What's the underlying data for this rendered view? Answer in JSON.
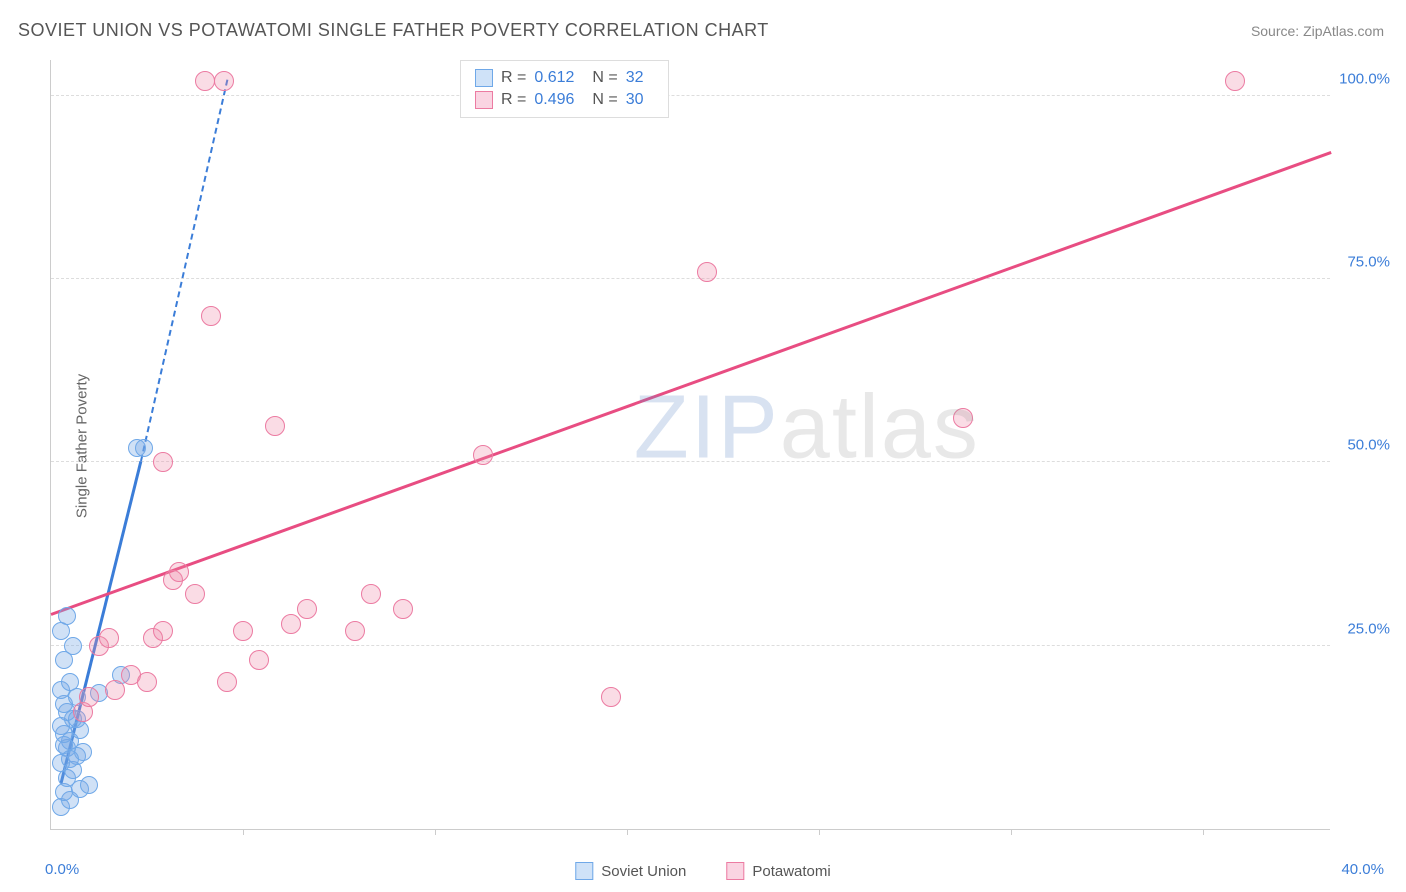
{
  "title": "SOVIET UNION VS POTAWATOMI SINGLE FATHER POVERTY CORRELATION CHART",
  "source": "Source: ZipAtlas.com",
  "ylabel": "Single Father Poverty",
  "watermark_z": "ZIP",
  "watermark_rest": "atlas",
  "chart": {
    "type": "scatter",
    "xlim": [
      0,
      40
    ],
    "ylim": [
      0,
      105
    ],
    "x_tick_positions_pct": [
      15,
      30,
      45,
      60,
      75,
      90
    ],
    "x_axis_labels": {
      "left": "0.0%",
      "right": "40.0%"
    },
    "y_gridlines": [
      {
        "value": 25,
        "label": "25.0%"
      },
      {
        "value": 50,
        "label": "50.0%"
      },
      {
        "value": 75,
        "label": "75.0%"
      },
      {
        "value": 100,
        "label": "100.0%"
      }
    ],
    "background_color": "#ffffff",
    "grid_color": "#dddddd",
    "axis_color": "#cccccc",
    "tick_label_color": "#3b7dd8",
    "series": [
      {
        "name": "Soviet Union",
        "color_fill": "rgba(120,170,230,0.35)",
        "color_stroke": "#6fa8e8",
        "swatch_fill": "#cfe2f8",
        "swatch_border": "#6fa8e8",
        "point_radius": 9,
        "stats": {
          "R": "0.612",
          "N": "32"
        },
        "trend": {
          "x1": 0.3,
          "y1": 6,
          "x2": 2.8,
          "y2": 50,
          "solid_color": "#3b7dd8",
          "dash_x2": 5.5,
          "dash_y2": 102
        },
        "points": [
          {
            "x": 0.3,
            "y": 3
          },
          {
            "x": 0.6,
            "y": 4
          },
          {
            "x": 0.4,
            "y": 5
          },
          {
            "x": 0.9,
            "y": 5.5
          },
          {
            "x": 1.2,
            "y": 6
          },
          {
            "x": 0.5,
            "y": 7
          },
          {
            "x": 0.7,
            "y": 8
          },
          {
            "x": 0.3,
            "y": 9
          },
          {
            "x": 0.8,
            "y": 10
          },
          {
            "x": 1.0,
            "y": 10.5
          },
          {
            "x": 0.5,
            "y": 11
          },
          {
            "x": 0.6,
            "y": 12
          },
          {
            "x": 0.4,
            "y": 13
          },
          {
            "x": 0.9,
            "y": 13.5
          },
          {
            "x": 0.3,
            "y": 14
          },
          {
            "x": 0.7,
            "y": 15
          },
          {
            "x": 0.5,
            "y": 16
          },
          {
            "x": 0.4,
            "y": 17
          },
          {
            "x": 0.8,
            "y": 18
          },
          {
            "x": 1.5,
            "y": 18.5
          },
          {
            "x": 0.3,
            "y": 19
          },
          {
            "x": 0.6,
            "y": 20
          },
          {
            "x": 2.2,
            "y": 21
          },
          {
            "x": 0.4,
            "y": 23
          },
          {
            "x": 0.7,
            "y": 25
          },
          {
            "x": 0.3,
            "y": 27
          },
          {
            "x": 0.5,
            "y": 29
          },
          {
            "x": 0.8,
            "y": 15
          },
          {
            "x": 0.4,
            "y": 11.5
          },
          {
            "x": 0.6,
            "y": 9.5
          },
          {
            "x": 2.7,
            "y": 52
          },
          {
            "x": 2.9,
            "y": 52
          }
        ]
      },
      {
        "name": "Potawatomi",
        "color_fill": "rgba(240,140,170,0.30)",
        "color_stroke": "#ec7ba2",
        "swatch_fill": "#fad4e2",
        "swatch_border": "#ec7ba2",
        "point_radius": 10,
        "stats": {
          "R": "0.496",
          "N": "30"
        },
        "trend": {
          "x1": 0,
          "y1": 29,
          "x2": 40,
          "y2": 92,
          "solid_color": "#e84d82"
        },
        "points": [
          {
            "x": 1.0,
            "y": 16
          },
          {
            "x": 1.2,
            "y": 18
          },
          {
            "x": 1.5,
            "y": 25
          },
          {
            "x": 1.8,
            "y": 26
          },
          {
            "x": 2.0,
            "y": 19
          },
          {
            "x": 2.5,
            "y": 21
          },
          {
            "x": 3.0,
            "y": 20
          },
          {
            "x": 3.2,
            "y": 26
          },
          {
            "x": 3.5,
            "y": 27
          },
          {
            "x": 3.8,
            "y": 34
          },
          {
            "x": 4.0,
            "y": 35
          },
          {
            "x": 3.5,
            "y": 50
          },
          {
            "x": 4.5,
            "y": 32
          },
          {
            "x": 5.0,
            "y": 70
          },
          {
            "x": 5.5,
            "y": 20
          },
          {
            "x": 6.0,
            "y": 27
          },
          {
            "x": 6.5,
            "y": 23
          },
          {
            "x": 7.0,
            "y": 55
          },
          {
            "x": 7.5,
            "y": 28
          },
          {
            "x": 8.0,
            "y": 30
          },
          {
            "x": 9.5,
            "y": 27
          },
          {
            "x": 10.0,
            "y": 32
          },
          {
            "x": 11.0,
            "y": 30
          },
          {
            "x": 13.5,
            "y": 51
          },
          {
            "x": 17.5,
            "y": 18
          },
          {
            "x": 20.5,
            "y": 76
          },
          {
            "x": 28.5,
            "y": 56
          },
          {
            "x": 37.0,
            "y": 102
          },
          {
            "x": 4.8,
            "y": 102
          },
          {
            "x": 5.4,
            "y": 102
          }
        ]
      }
    ]
  },
  "legend_top": {
    "R_label": "R  =",
    "N_label": "N  ="
  },
  "legend_bottom": {
    "items": [
      "Soviet Union",
      "Potawatomi"
    ]
  }
}
